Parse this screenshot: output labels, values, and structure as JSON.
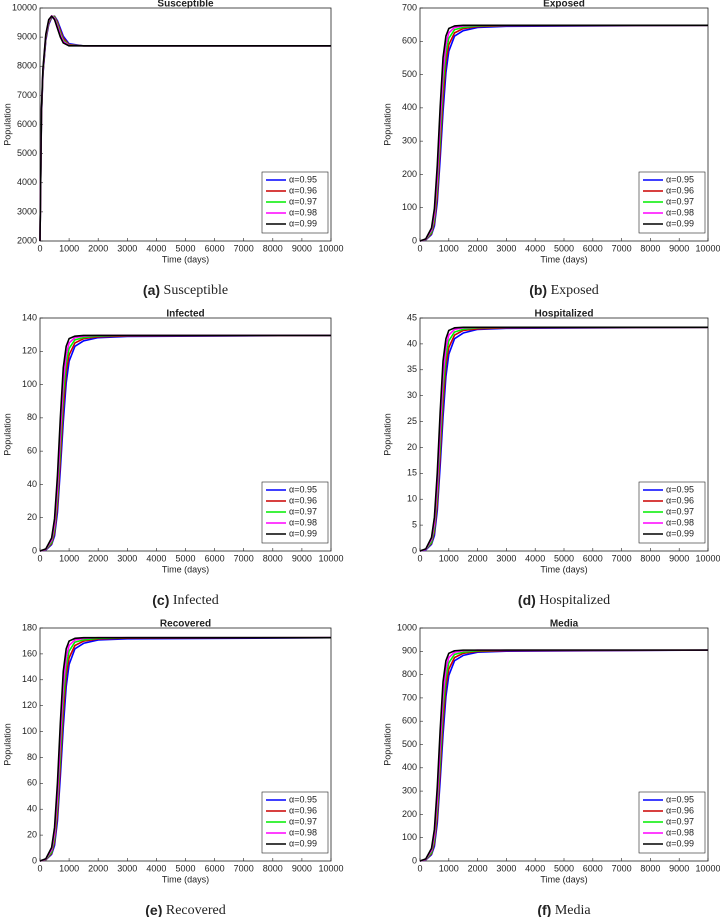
{
  "chart_data": [
    {
      "type": "line",
      "title": "Susceptible",
      "caption_label": "(a)",
      "caption": "Susceptible",
      "x_label": "Time (days)",
      "y_label": "Population",
      "legend": "lower right",
      "x": [
        0,
        50,
        100,
        200,
        300,
        400,
        500,
        600,
        700,
        800,
        1000,
        1500,
        10000
      ],
      "xlim": [
        0,
        10000
      ],
      "xticks": [
        0,
        1000,
        2000,
        3000,
        4000,
        5000,
        6000,
        7000,
        8000,
        9000,
        10000
      ],
      "ylim": [
        2000,
        10000
      ],
      "yticks": [
        2000,
        3000,
        4000,
        5000,
        6000,
        7000,
        8000,
        9000,
        10000
      ],
      "series": [
        {
          "name": "α=0.95",
          "color": "#0000ff",
          "values": [
            2000,
            6300,
            7700,
            8900,
            9430,
            9670,
            9720,
            9560,
            9300,
            9030,
            8770,
            8700,
            8700
          ]
        },
        {
          "name": "α=0.96",
          "color": "#cc0000",
          "values": [
            2000,
            6350,
            7750,
            8950,
            9480,
            9700,
            9710,
            9510,
            9220,
            8960,
            8740,
            8700,
            8700
          ]
        },
        {
          "name": "α=0.97",
          "color": "#00ee00",
          "values": [
            2000,
            6400,
            7800,
            9000,
            9520,
            9720,
            9690,
            9450,
            9150,
            8900,
            8720,
            8700,
            8700
          ]
        },
        {
          "name": "α=0.98",
          "color": "#ff00ff",
          "values": [
            2000,
            6450,
            7850,
            9050,
            9560,
            9730,
            9650,
            9380,
            9080,
            8850,
            8710,
            8700,
            8700
          ]
        },
        {
          "name": "α=0.99",
          "color": "#000000",
          "values": [
            2000,
            6500,
            7900,
            9100,
            9600,
            9720,
            9600,
            9300,
            9000,
            8800,
            8700,
            8700,
            8700
          ]
        }
      ]
    },
    {
      "type": "line",
      "title": "Exposed",
      "caption_label": "(b)",
      "caption": "Exposed",
      "x_label": "Time (days)",
      "y_label": "Population",
      "legend": "lower right",
      "x": [
        0,
        200,
        400,
        500,
        600,
        700,
        800,
        900,
        1000,
        1200,
        1500,
        2000,
        3000,
        10000
      ],
      "xlim": [
        0,
        10000
      ],
      "xticks": [
        0,
        1000,
        2000,
        3000,
        4000,
        5000,
        6000,
        7000,
        8000,
        9000,
        10000
      ],
      "ylim": [
        0,
        700
      ],
      "yticks": [
        0,
        100,
        200,
        300,
        400,
        500,
        600,
        700
      ],
      "series": [
        {
          "name": "α=0.95",
          "color": "#0000ff",
          "values": [
            0,
            3.2,
            19.4,
            45.4,
            116.6,
            246.2,
            388.8,
            505.4,
            570.2,
            615.6,
            631.8,
            641.5,
            644.8,
            648
          ]
        },
        {
          "name": "α=0.96",
          "color": "#cc0000",
          "values": [
            0,
            3.9,
            22.7,
            55.1,
            136.1,
            278.6,
            427.7,
            537.8,
            589.7,
            625.3,
            638.3,
            644.1,
            646.7,
            648
          ]
        },
        {
          "name": "α=0.97",
          "color": "#00ee00",
          "values": [
            0,
            4.5,
            25.9,
            64.8,
            162,
            311,
            466.6,
            563.8,
            609.1,
            635,
            641.5,
            646.1,
            648,
            648
          ]
        },
        {
          "name": "α=0.98",
          "color": "#ff00ff",
          "values": [
            0,
            5.2,
            32.4,
            77.8,
            187.9,
            349.9,
            505.4,
            589.7,
            625.3,
            641.5,
            646.1,
            648,
            648,
            648
          ]
        },
        {
          "name": "α=0.99",
          "color": "#000000",
          "values": [
            0,
            6.5,
            38.9,
            97.2,
            226.8,
            401.8,
            550.8,
            615.6,
            638.3,
            646.1,
            648,
            648,
            648,
            648
          ]
        }
      ]
    },
    {
      "type": "line",
      "title": "Infected",
      "caption_label": "(c)",
      "caption": "Infected",
      "x_label": "Time (days)",
      "y_label": "Population",
      "legend": "lower right",
      "x": [
        0,
        200,
        400,
        500,
        600,
        700,
        800,
        900,
        1000,
        1200,
        1500,
        2000,
        3000,
        10000
      ],
      "xlim": [
        0,
        10000
      ],
      "xticks": [
        0,
        1000,
        2000,
        3000,
        4000,
        5000,
        6000,
        7000,
        8000,
        9000,
        10000
      ],
      "ylim": [
        0,
        140
      ],
      "yticks": [
        0,
        20,
        40,
        60,
        80,
        100,
        120,
        140
      ],
      "series": [
        {
          "name": "α=0.95",
          "color": "#0000ff",
          "values": [
            0,
            0.6,
            3.9,
            9.1,
            23.3,
            49.2,
            77.7,
            101,
            114,
            123,
            126.3,
            128.2,
            128.9,
            129.5
          ]
        },
        {
          "name": "α=0.96",
          "color": "#cc0000",
          "values": [
            0,
            0.8,
            4.5,
            11,
            27.2,
            55.7,
            85.5,
            107.5,
            117.8,
            125,
            127.6,
            128.7,
            129.2,
            129.5
          ]
        },
        {
          "name": "α=0.97",
          "color": "#00ee00",
          "values": [
            0,
            0.9,
            5.2,
            13,
            32.4,
            62.2,
            93.2,
            112.7,
            121.7,
            126.9,
            128.2,
            129.1,
            129.5,
            129.5
          ]
        },
        {
          "name": "α=0.98",
          "color": "#ff00ff",
          "values": [
            0,
            1,
            6.5,
            15.5,
            37.6,
            69.9,
            101,
            117.8,
            125,
            128.2,
            129.1,
            129.5,
            129.5,
            129.5
          ]
        },
        {
          "name": "α=0.99",
          "color": "#000000",
          "values": [
            0,
            1.3,
            7.8,
            19.4,
            45.3,
            80.3,
            110.1,
            123,
            127.6,
            129.1,
            129.5,
            129.5,
            129.5,
            129.5
          ]
        }
      ]
    },
    {
      "type": "line",
      "title": "Hospitalized",
      "caption_label": "(d)",
      "caption": "Hospitalized",
      "x_label": "Time (days)",
      "y_label": "Population",
      "legend": "lower right",
      "x": [
        0,
        200,
        400,
        500,
        600,
        700,
        800,
        900,
        1000,
        1200,
        1500,
        2000,
        3000,
        10000
      ],
      "xlim": [
        0,
        10000
      ],
      "xticks": [
        0,
        1000,
        2000,
        3000,
        4000,
        5000,
        6000,
        7000,
        8000,
        9000,
        10000
      ],
      "ylim": [
        0,
        45
      ],
      "yticks": [
        0,
        5,
        10,
        15,
        20,
        25,
        30,
        35,
        40,
        45
      ],
      "series": [
        {
          "name": "α=0.95",
          "color": "#0000ff",
          "values": [
            0,
            0.2,
            1.3,
            3,
            7.8,
            16.4,
            25.9,
            33.7,
            38,
            41,
            42.1,
            42.8,
            43,
            43.2
          ]
        },
        {
          "name": "α=0.96",
          "color": "#cc0000",
          "values": [
            0,
            0.3,
            1.5,
            3.7,
            9.1,
            18.6,
            28.5,
            35.9,
            39.3,
            41.7,
            42.6,
            42.9,
            43.1,
            43.2
          ]
        },
        {
          "name": "α=0.97",
          "color": "#00ee00",
          "values": [
            0,
            0.3,
            1.7,
            4.3,
            10.8,
            20.7,
            31.1,
            37.6,
            40.6,
            42.3,
            42.8,
            43.1,
            43.2,
            43.2
          ]
        },
        {
          "name": "α=0.98",
          "color": "#ff00ff",
          "values": [
            0,
            0.3,
            2.2,
            5.2,
            12.5,
            23.3,
            33.7,
            39.3,
            41.7,
            42.8,
            43.1,
            43.2,
            43.2,
            43.2
          ]
        },
        {
          "name": "α=0.99",
          "color": "#000000",
          "values": [
            0,
            0.4,
            2.6,
            6.5,
            15.1,
            26.8,
            36.7,
            41,
            42.6,
            43.1,
            43.2,
            43.2,
            43.2,
            43.2
          ]
        }
      ]
    },
    {
      "type": "line",
      "title": "Recovered",
      "caption_label": "(e)",
      "caption": "Recovered",
      "x_label": "Time (days)",
      "y_label": "Population",
      "legend": "lower right",
      "x": [
        0,
        200,
        400,
        500,
        600,
        700,
        800,
        900,
        1000,
        1200,
        1500,
        2000,
        3000,
        10000
      ],
      "xlim": [
        0,
        10000
      ],
      "xticks": [
        0,
        1000,
        2000,
        3000,
        4000,
        5000,
        6000,
        7000,
        8000,
        9000,
        10000
      ],
      "ylim": [
        0,
        180
      ],
      "yticks": [
        0,
        20,
        40,
        60,
        80,
        100,
        120,
        140,
        160,
        180
      ],
      "series": [
        {
          "name": "α=0.95",
          "color": "#0000ff",
          "values": [
            0,
            0.9,
            5.2,
            12.1,
            31.1,
            65.6,
            103.5,
            134.6,
            151.8,
            163.9,
            168.2,
            170.8,
            171.6,
            172.5
          ]
        },
        {
          "name": "α=0.96",
          "color": "#cc0000",
          "values": [
            0,
            1,
            6,
            14.7,
            36.2,
            74.2,
            113.9,
            143.2,
            157,
            166.5,
            169.9,
            171.5,
            172.2,
            172.5
          ]
        },
        {
          "name": "α=0.97",
          "color": "#00ee00",
          "values": [
            0,
            1.2,
            6.9,
            17.3,
            43.1,
            82.8,
            124.2,
            150.1,
            162.2,
            169.1,
            170.8,
            172,
            172.5,
            172.5
          ]
        },
        {
          "name": "α=0.98",
          "color": "#ff00ff",
          "values": [
            0,
            1.4,
            8.6,
            20.7,
            50,
            93.2,
            134.6,
            157,
            166.5,
            170.8,
            172,
            172.5,
            172.5,
            172.5
          ]
        },
        {
          "name": "α=0.99",
          "color": "#000000",
          "values": [
            0,
            1.7,
            10.4,
            25.9,
            60.4,
            107,
            146.6,
            163.9,
            169.9,
            172,
            172.5,
            172.5,
            172.5,
            172.5
          ]
        }
      ]
    },
    {
      "type": "line",
      "title": "Media",
      "caption_label": "(f)",
      "caption": "Media",
      "x_label": "Time (days)",
      "y_label": "Population",
      "legend": "lower right",
      "x": [
        0,
        200,
        400,
        500,
        600,
        700,
        800,
        900,
        1000,
        1200,
        1500,
        2000,
        3000,
        10000
      ],
      "xlim": [
        0,
        10000
      ],
      "xticks": [
        0,
        1000,
        2000,
        3000,
        4000,
        5000,
        6000,
        7000,
        8000,
        9000,
        10000
      ],
      "ylim": [
        0,
        1000
      ],
      "yticks": [
        0,
        100,
        200,
        300,
        400,
        500,
        600,
        700,
        800,
        900,
        1000
      ],
      "series": [
        {
          "name": "α=0.95",
          "color": "#0000ff",
          "values": [
            0,
            4.5,
            27.2,
            63.4,
            162.9,
            343.9,
            543,
            705.9,
            796.4,
            859.8,
            882.4,
            896,
            900.5,
            905
          ]
        },
        {
          "name": "α=0.96",
          "color": "#cc0000",
          "values": [
            0,
            5.4,
            31.7,
            76.9,
            190.1,
            389.2,
            597.3,
            751.2,
            823.6,
            873.3,
            891.4,
            899.6,
            903.2,
            905
          ]
        },
        {
          "name": "α=0.97",
          "color": "#00ee00",
          "values": [
            0,
            6.3,
            36.2,
            90.5,
            226.3,
            434.4,
            651.6,
            787.4,
            850.7,
            886.9,
            896,
            902.3,
            905,
            905
          ]
        },
        {
          "name": "α=0.98",
          "color": "#ff00ff",
          "values": [
            0,
            7.2,
            45.3,
            108.6,
            262.5,
            488.7,
            705.9,
            823.6,
            873.3,
            896,
            902.3,
            905,
            905,
            905
          ]
        },
        {
          "name": "α=0.99",
          "color": "#000000",
          "values": [
            0,
            9,
            54.3,
            135.8,
            316.8,
            561.1,
            769.3,
            859.8,
            891.4,
            902.3,
            905,
            905,
            905,
            905
          ]
        }
      ]
    }
  ]
}
